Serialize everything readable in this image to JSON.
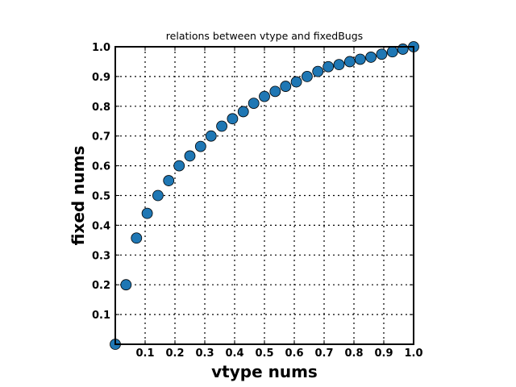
{
  "chart_data": {
    "type": "scatter",
    "title": "relations between vtype and fixedBugs",
    "xlabel": "vtype nums",
    "ylabel": "fixed nums",
    "xlim": [
      0,
      1.0
    ],
    "ylim": [
      0,
      1.0
    ],
    "x_ticks": [
      "0.1",
      "0.2",
      "0.3",
      "0.4",
      "0.5",
      "0.6",
      "0.7",
      "0.8",
      "0.9",
      "1.0"
    ],
    "y_ticks": [
      "0.1",
      "0.2",
      "0.3",
      "0.4",
      "0.5",
      "0.6",
      "0.7",
      "0.8",
      "0.9",
      "1.0"
    ],
    "grid": true,
    "marker_color": "#1f77b4",
    "series": [
      {
        "x": [
          0.0,
          0.036,
          0.071,
          0.107,
          0.143,
          0.179,
          0.214,
          0.25,
          0.286,
          0.321,
          0.357,
          0.393,
          0.429,
          0.464,
          0.5,
          0.536,
          0.571,
          0.607,
          0.643,
          0.679,
          0.714,
          0.75,
          0.786,
          0.821,
          0.857,
          0.893,
          0.929,
          0.964,
          1.0
        ],
        "y": [
          0.0,
          0.2,
          0.357,
          0.44,
          0.5,
          0.55,
          0.6,
          0.633,
          0.665,
          0.7,
          0.733,
          0.758,
          0.782,
          0.81,
          0.833,
          0.85,
          0.867,
          0.882,
          0.9,
          0.917,
          0.933,
          0.94,
          0.95,
          0.958,
          0.965,
          0.975,
          0.983,
          0.992,
          1.0
        ]
      }
    ]
  }
}
